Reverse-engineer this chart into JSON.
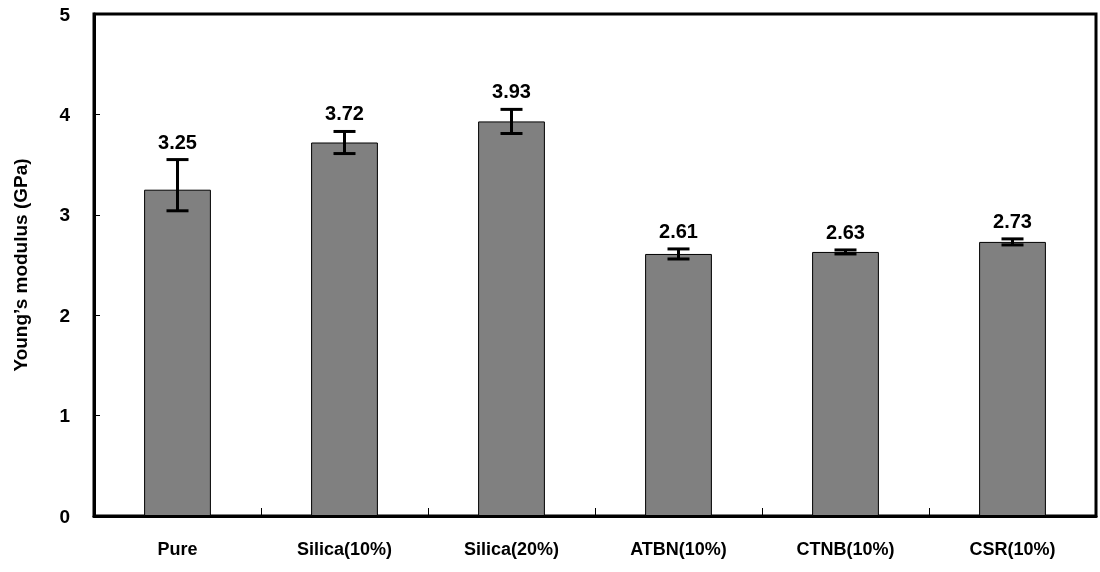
{
  "chart_data": {
    "type": "bar",
    "ylabel": "Young’s modulus (GPa)",
    "categories": [
      "Pure",
      "Silica(10%)",
      "Silica(20%)",
      "ATBN(10%)",
      "CTNB(10%)",
      "CSR(10%)"
    ],
    "values": [
      3.25,
      3.72,
      3.93,
      2.61,
      2.63,
      2.73
    ],
    "errors": [
      [
        3.04,
        3.55
      ],
      0.11,
      0.12,
      0.05,
      0.02,
      0.03
    ],
    "color": "#808080",
    "ylim": [
      0,
      5
    ],
    "yticks": [
      0,
      1,
      2,
      3,
      4,
      5
    ],
    "data_labels": true,
    "grid": false
  }
}
